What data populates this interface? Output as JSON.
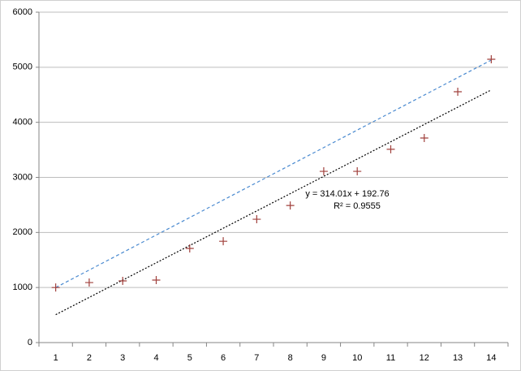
{
  "chart_data": {
    "type": "scatter",
    "x": [
      1,
      2,
      3,
      4,
      5,
      6,
      7,
      8,
      9,
      10,
      11,
      12,
      13,
      14
    ],
    "series": [
      {
        "color": "#a0403c",
        "values": [
          1000,
          1090,
          1120,
          1135,
          1710,
          1840,
          2240,
          2490,
          3110,
          3110,
          3510,
          3715,
          4555,
          5145
        ]
      }
    ],
    "trendline": {
      "slope": 314.01,
      "intercept": 192.76,
      "color": "#000000",
      "equation": "y = 314.01x + 192.76",
      "r2": "R² = 0.9555"
    },
    "upper_line": {
      "x": [
        1,
        14
      ],
      "values": [
        1000,
        5130
      ],
      "color": "#4a8ad0"
    },
    "ylim": [
      0,
      6000
    ],
    "yticks": [
      0,
      1000,
      2000,
      3000,
      4000,
      5000,
      6000
    ],
    "grid": true
  }
}
